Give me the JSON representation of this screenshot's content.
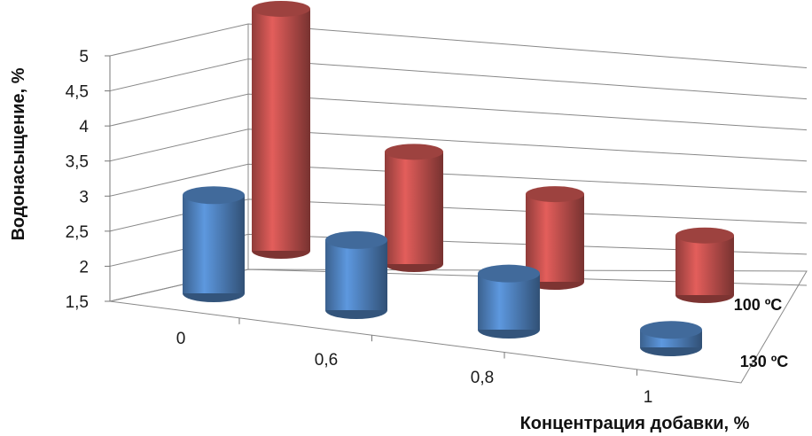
{
  "chart_data": {
    "type": "bar",
    "style": "3d-cylinder",
    "categories": [
      "0",
      "0,6",
      "0,8",
      "1"
    ],
    "series": [
      {
        "name": "100 ºС",
        "values": [
          4.95,
          3.1,
          2.75,
          2.35
        ],
        "color": "#c0504d"
      },
      {
        "name": "130 ºС",
        "values": [
          2.9,
          2.5,
          2.3,
          1.75
        ],
        "color": "#4f81bd"
      }
    ],
    "y_ticks": [
      "1,5",
      "2",
      "2,5",
      "3",
      "3,5",
      "4",
      "4,5",
      "5"
    ],
    "ylim": [
      1.5,
      5
    ],
    "xlabel": "Концентрация добавки, %",
    "ylabel": "Водонасыщение, %",
    "grid": true
  }
}
